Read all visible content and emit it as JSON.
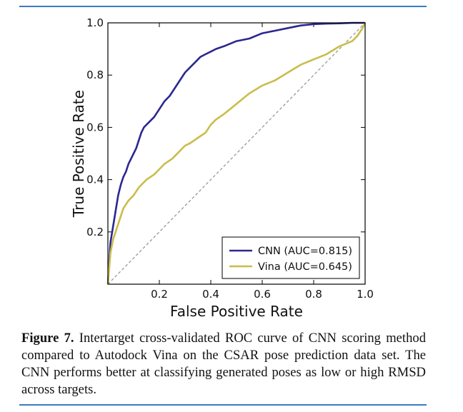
{
  "chart_data": {
    "type": "line",
    "xlabel": "False Positive Rate",
    "ylabel": "True Positive Rate",
    "xlim": [
      0.0,
      1.0
    ],
    "ylim": [
      0.0,
      1.0
    ],
    "xticks": [
      "0.2",
      "0.4",
      "0.6",
      "0.8",
      "1.0"
    ],
    "yticks": [
      "0.2",
      "0.4",
      "0.6",
      "0.8",
      "1.0"
    ],
    "legend_position": "lower-right",
    "grid": false,
    "series": [
      {
        "name": "CNN (AUC=0.815)",
        "color": "#2b2890",
        "x": [
          0,
          0.005,
          0.01,
          0.02,
          0.03,
          0.04,
          0.05,
          0.06,
          0.07,
          0.08,
          0.09,
          0.1,
          0.11,
          0.12,
          0.13,
          0.14,
          0.15,
          0.16,
          0.18,
          0.2,
          0.22,
          0.24,
          0.26,
          0.28,
          0.3,
          0.32,
          0.34,
          0.36,
          0.38,
          0.4,
          0.42,
          0.45,
          0.5,
          0.55,
          0.6,
          0.65,
          0.7,
          0.75,
          0.8,
          0.85,
          0.9,
          0.95,
          1.0
        ],
        "y": [
          0,
          0.08,
          0.16,
          0.22,
          0.28,
          0.34,
          0.38,
          0.41,
          0.43,
          0.46,
          0.48,
          0.5,
          0.52,
          0.55,
          0.58,
          0.6,
          0.61,
          0.62,
          0.64,
          0.67,
          0.7,
          0.72,
          0.75,
          0.78,
          0.81,
          0.83,
          0.85,
          0.87,
          0.88,
          0.89,
          0.9,
          0.91,
          0.93,
          0.94,
          0.96,
          0.97,
          0.98,
          0.99,
          0.995,
          0.997,
          0.998,
          1.0,
          1.0
        ]
      },
      {
        "name": "Vina (AUC=0.645)",
        "color": "#c9bd4a",
        "x": [
          0,
          0.005,
          0.01,
          0.02,
          0.03,
          0.04,
          0.05,
          0.06,
          0.08,
          0.1,
          0.12,
          0.15,
          0.18,
          0.2,
          0.22,
          0.25,
          0.28,
          0.3,
          0.32,
          0.35,
          0.38,
          0.4,
          0.42,
          0.45,
          0.5,
          0.55,
          0.6,
          0.65,
          0.7,
          0.75,
          0.8,
          0.85,
          0.9,
          0.95,
          0.97,
          0.99,
          1.0
        ],
        "y": [
          0,
          0.06,
          0.12,
          0.17,
          0.2,
          0.23,
          0.26,
          0.29,
          0.32,
          0.34,
          0.37,
          0.4,
          0.42,
          0.44,
          0.46,
          0.48,
          0.51,
          0.53,
          0.54,
          0.56,
          0.58,
          0.61,
          0.63,
          0.65,
          0.69,
          0.73,
          0.76,
          0.78,
          0.81,
          0.84,
          0.86,
          0.88,
          0.91,
          0.93,
          0.95,
          0.98,
          1.0
        ]
      }
    ],
    "reference_line": {
      "x": [
        0,
        1
      ],
      "y": [
        0,
        1
      ],
      "style": "dashed",
      "color": "#999999"
    }
  },
  "caption": {
    "label": "Figure 7.",
    "text": "Intertarget cross-validated ROC curve of CNN scoring method compared to Autodock Vina on the CSAR pose prediction data set. The CNN performs better at classifying generated poses as low or high RMSD across targets."
  }
}
